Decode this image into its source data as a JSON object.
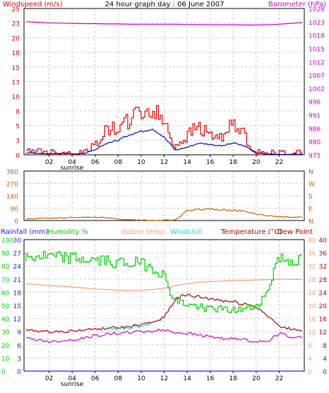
{
  "header": {
    "left": "Windspeed (m/s)",
    "center": "24 hour graph day : 06 June 2007",
    "right": "Barometer (hPa)"
  },
  "colors": {
    "grid": "#c8c8c8",
    "frame": "#000000",
    "wind_gust": "#dd0000",
    "wind_avg": "#0000aa",
    "barometer": "#cc00cc",
    "direction": "#c06000",
    "rain": "#2020dd",
    "humidity": "#00cc00",
    "indoor": "#f0a070",
    "windchill": "#20d0d0",
    "temperature": "#aa0000",
    "dewpoint": "#cc00cc"
  },
  "x_ticks": [
    "02",
    "04",
    "06",
    "08",
    "10",
    "12",
    "14",
    "16",
    "18",
    "20",
    "22"
  ],
  "sunrise_label": "sunrise",
  "panels": {
    "wind": {
      "left_ticks": [
        "25",
        "23",
        "20",
        "18",
        "15",
        "13",
        "10",
        "8",
        "5",
        "3",
        "0"
      ],
      "right_ticks": [
        "1028",
        "1023",
        "1018",
        "1015",
        "1012",
        "1007",
        "1002",
        "996",
        "991",
        "986",
        "980",
        "975"
      ]
    },
    "direction": {
      "left_ticks": [
        "360",
        "270",
        "180",
        "90",
        "0"
      ],
      "right_ticks": [
        "N",
        "W",
        "S",
        "E",
        "N"
      ]
    },
    "temp": {
      "legend": {
        "rain": "Rainfall (mm)",
        "humidity": "Humidity %",
        "indoor": "Indoor temp",
        "windchill": "Windchill",
        "temperature": "Temperature (°C)",
        "dewpoint": "Dew Point"
      },
      "hum_ticks": [
        "100",
        "90",
        "80",
        "70",
        "60",
        "50",
        "40",
        "30",
        "20",
        "10",
        "0"
      ],
      "rain_ticks": [
        "30",
        "27",
        "24",
        "21",
        "18",
        "15",
        "12",
        "9",
        "6",
        "3",
        "0"
      ],
      "temp_ticks_a": [
        "40",
        "36",
        "32",
        "28",
        "24",
        "20",
        "16",
        "12",
        "8",
        "4",
        "0"
      ],
      "temp_ticks_b": [
        "40",
        "36",
        "32",
        "28",
        "24",
        "20",
        "16",
        "12",
        "8",
        "4",
        "0"
      ]
    }
  },
  "chart_data": [
    {
      "type": "line",
      "title": "24 hour graph day : 06 June 2007",
      "xlabel": "",
      "x": [
        0,
        1,
        2,
        3,
        4,
        5,
        6,
        7,
        8,
        9,
        10,
        11,
        12,
        13,
        14,
        15,
        16,
        17,
        18,
        19,
        20,
        21,
        22,
        23,
        24
      ],
      "ylim": [
        0,
        25
      ],
      "y2lim": [
        975,
        1028
      ],
      "series": [
        {
          "name": "Windspeed gust",
          "values": [
            0.5,
            0.8,
            0.5,
            0.5,
            0.3,
            0.3,
            1.5,
            4.0,
            4.5,
            6.0,
            7.2,
            7.5,
            6.0,
            1.5,
            3.0,
            5.0,
            3.5,
            3.0,
            5.0,
            3.5,
            0.5,
            0.3,
            0.3,
            0.3,
            0.3
          ]
        },
        {
          "name": "Windspeed average",
          "values": [
            0.3,
            0.3,
            0.2,
            0.2,
            0.2,
            0.2,
            0.8,
            2.0,
            2.5,
            3.5,
            4.0,
            4.5,
            3.0,
            0.8,
            1.3,
            2.0,
            1.8,
            1.5,
            2.0,
            1.5,
            0.3,
            0.1,
            0.1,
            0.1,
            0.1
          ]
        },
        {
          "name": "Barometer",
          "axis": "right",
          "values": [
            1023.2,
            1023.0,
            1022.8,
            1022.7,
            1022.6,
            1022.5,
            1022.5,
            1022.4,
            1022.4,
            1022.3,
            1022.3,
            1022.3,
            1022.3,
            1022.3,
            1022.2,
            1022.2,
            1022.1,
            1022.1,
            1022.1,
            1022.0,
            1022.0,
            1022.1,
            1022.3,
            1022.6,
            1022.9
          ]
        }
      ]
    },
    {
      "type": "line",
      "title": "",
      "x": [
        0,
        1,
        2,
        3,
        4,
        5,
        6,
        7,
        8,
        9,
        10,
        11,
        12,
        13,
        14,
        15,
        16,
        17,
        18,
        19,
        20,
        21,
        22,
        23,
        24
      ],
      "ylim": [
        0,
        360
      ],
      "series": [
        {
          "name": "Wind direction",
          "values": [
            12,
            15,
            18,
            20,
            22,
            24,
            25,
            20,
            10,
            5,
            3,
            2,
            3,
            5,
            70,
            80,
            85,
            80,
            75,
            65,
            50,
            35,
            30,
            25,
            25
          ]
        }
      ]
    },
    {
      "type": "line",
      "title": "",
      "x": [
        0,
        1,
        2,
        3,
        4,
        5,
        6,
        7,
        8,
        9,
        10,
        11,
        12,
        13,
        14,
        15,
        16,
        17,
        18,
        19,
        20,
        21,
        22,
        23,
        24
      ],
      "ylim": [
        0,
        100
      ],
      "series": [
        {
          "name": "Humidity %",
          "values": [
            86,
            87,
            87,
            86,
            86,
            85,
            84,
            84,
            83,
            82,
            82,
            79,
            74,
            54,
            51,
            49,
            48,
            47,
            46,
            47,
            49,
            58,
            86,
            84,
            84
          ]
        },
        {
          "name": "Rainfall (mm)",
          "axis": "rain",
          "values": [
            0,
            0,
            0,
            0,
            0,
            0,
            0,
            0,
            0,
            0,
            0,
            0,
            0,
            0,
            0,
            0,
            0,
            0,
            0,
            0,
            0,
            0,
            0,
            0,
            0
          ]
        },
        {
          "name": "Indoor temp",
          "axis": "temp",
          "values": [
            26.5,
            26.3,
            26.0,
            25.8,
            25.6,
            25.3,
            25.0,
            24.8,
            24.6,
            24.5,
            24.6,
            24.8,
            25.2,
            26.0,
            26.6,
            27.0,
            27.2,
            27.4,
            27.5,
            27.6,
            27.7,
            27.8,
            28.0,
            27.9,
            27.8
          ]
        },
        {
          "name": "Windchill",
          "axis": "temp",
          "values": [
            null,
            null,
            null,
            null,
            null,
            null,
            null,
            12.6,
            13.0,
            13.2,
            13.8,
            14.5,
            null,
            null,
            null,
            null,
            null,
            null,
            null,
            null,
            null,
            null,
            null,
            null,
            null
          ]
        },
        {
          "name": "Temperature (°C)",
          "axis": "temp",
          "values": [
            12.5,
            12.2,
            12.0,
            12.0,
            12.2,
            12.5,
            12.8,
            13.0,
            13.2,
            13.5,
            14.0,
            14.8,
            16.5,
            22.0,
            23.0,
            22.5,
            22.0,
            21.5,
            21.0,
            20.5,
            19.5,
            17.0,
            13.5,
            12.8,
            12.5
          ]
        },
        {
          "name": "Dew Point",
          "axis": "temp",
          "values": [
            10.0,
            9.5,
            9.0,
            9.2,
            9.5,
            10.0,
            10.8,
            11.2,
            11.5,
            11.8,
            12.0,
            12.2,
            12.5,
            11.8,
            11.5,
            11.0,
            10.5,
            10.0,
            9.8,
            9.5,
            9.0,
            9.0,
            11.5,
            10.5,
            10.0
          ]
        }
      ]
    }
  ]
}
